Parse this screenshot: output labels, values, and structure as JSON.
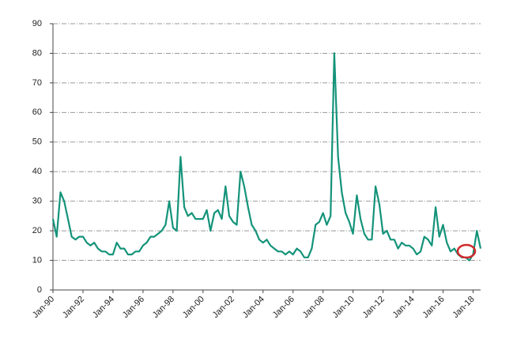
{
  "chart_data": {
    "type": "line",
    "categories": [
      "Jan-90",
      null,
      null,
      null,
      null,
      null,
      null,
      null,
      "Jan-92",
      null,
      null,
      null,
      null,
      null,
      null,
      null,
      "Jan-94",
      null,
      null,
      null,
      null,
      null,
      null,
      null,
      "Jan-96",
      null,
      null,
      null,
      null,
      null,
      null,
      null,
      "Jan-98",
      null,
      null,
      null,
      null,
      null,
      null,
      null,
      "Jan-00",
      null,
      null,
      null,
      null,
      null,
      null,
      null,
      "Jan-02",
      null,
      null,
      null,
      null,
      null,
      null,
      null,
      "Jan-04",
      null,
      null,
      null,
      null,
      null,
      null,
      null,
      "Jan-06",
      null,
      null,
      null,
      null,
      null,
      null,
      null,
      "Jan-08",
      null,
      null,
      null,
      null,
      null,
      null,
      null,
      "Jan-10",
      null,
      null,
      null,
      null,
      null,
      null,
      null,
      "Jan-12",
      null,
      null,
      null,
      null,
      null,
      null,
      null,
      "Jan-14",
      null,
      null,
      null,
      null,
      null,
      null,
      null,
      "Jan-16",
      null,
      null,
      null,
      null,
      null,
      null,
      null,
      "Jan-18",
      null,
      null
    ],
    "values": [
      24,
      18,
      33,
      30,
      24,
      18,
      17,
      18,
      18,
      16,
      15,
      16,
      14,
      13,
      13,
      12,
      12,
      16,
      14,
      14,
      12,
      12,
      13,
      13,
      15,
      16,
      18,
      18,
      19,
      20,
      22,
      30,
      21,
      20,
      45,
      28,
      25,
      26,
      24,
      24,
      24,
      27,
      20,
      26,
      27,
      24,
      35,
      25,
      23,
      22,
      40,
      35,
      28,
      22,
      20,
      17,
      16,
      17,
      15,
      14,
      13,
      13,
      12,
      13,
      12,
      14,
      13,
      11,
      11,
      14,
      22,
      23,
      26,
      22,
      25,
      80,
      45,
      33,
      26,
      23,
      19,
      32,
      24,
      19,
      17,
      17,
      35,
      29,
      19,
      20,
      17,
      17,
      14,
      16,
      15,
      15,
      14,
      12,
      13,
      18,
      17,
      15,
      28,
      18,
      22,
      16,
      13,
      14,
      12,
      11,
      11,
      10,
      12,
      20,
      14
    ],
    "color": "#14937a",
    "ylim": [
      0,
      90
    ],
    "yticks": [
      0,
      10,
      20,
      30,
      40,
      50,
      60,
      70,
      80,
      90
    ],
    "grid": true
  }
}
